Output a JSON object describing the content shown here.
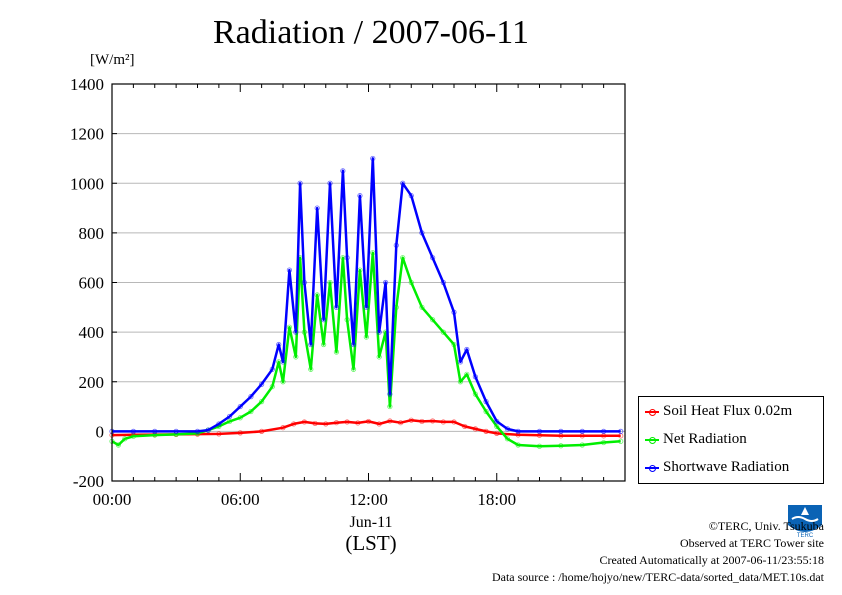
{
  "chart_data": {
    "type": "line",
    "title": "Radiation / 2007-06-11",
    "ylabel": "[W/m²]",
    "xlabel": "Jun-11",
    "xlabel_sub": "(LST)",
    "xlim": [
      0,
      24
    ],
    "ylim": [
      -200,
      1400
    ],
    "yticks": [
      -200,
      0,
      200,
      400,
      600,
      800,
      1000,
      1200,
      1400
    ],
    "xticks": [
      0,
      6,
      12,
      18
    ],
    "xtick_labels": [
      "00:00",
      "06:00",
      "12:00",
      "18:00"
    ],
    "grid": true,
    "legend_position": "bottom-right",
    "series": [
      {
        "name": "Soil Heat Flux 0.02m",
        "color": "#ff0000",
        "x": [
          0,
          1,
          2,
          3,
          4,
          5,
          6,
          7,
          8,
          8.5,
          9,
          9.5,
          10,
          10.5,
          11,
          11.5,
          12,
          12.5,
          13,
          13.5,
          14,
          14.5,
          15,
          15.5,
          16,
          16.5,
          17,
          17.5,
          18,
          19,
          20,
          21,
          22,
          23,
          23.8
        ],
        "y": [
          -15,
          -14,
          -13,
          -12,
          -11,
          -10,
          -6,
          0,
          15,
          30,
          38,
          32,
          30,
          35,
          38,
          34,
          40,
          30,
          42,
          35,
          45,
          40,
          42,
          38,
          38,
          20,
          10,
          0,
          -8,
          -14,
          -16,
          -18,
          -18,
          -18,
          -18
        ]
      },
      {
        "name": "Net Radiation",
        "color": "#00ee00",
        "x": [
          0,
          0.3,
          0.6,
          1,
          2,
          3,
          4,
          4.5,
          5,
          5.5,
          6,
          6.5,
          7,
          7.5,
          7.8,
          8,
          8.3,
          8.6,
          8.8,
          9,
          9.3,
          9.6,
          9.9,
          10.2,
          10.5,
          10.8,
          11,
          11.3,
          11.6,
          11.9,
          12.2,
          12.5,
          12.8,
          13,
          13.3,
          13.6,
          14,
          14.5,
          15,
          15.5,
          16,
          16.3,
          16.6,
          17,
          17.5,
          18,
          18.5,
          19,
          20,
          21,
          22,
          23,
          23.8
        ],
        "y": [
          -40,
          -55,
          -30,
          -20,
          -15,
          -12,
          -8,
          5,
          20,
          40,
          55,
          80,
          120,
          180,
          280,
          200,
          420,
          300,
          700,
          400,
          250,
          550,
          350,
          600,
          320,
          700,
          450,
          250,
          650,
          380,
          720,
          300,
          400,
          100,
          500,
          700,
          600,
          500,
          450,
          400,
          350,
          200,
          230,
          150,
          80,
          20,
          -30,
          -55,
          -60,
          -58,
          -55,
          -45,
          -40
        ]
      },
      {
        "name": "Shortwave Radiation",
        "color": "#0000ff",
        "x": [
          0,
          1,
          2,
          3,
          4,
          4.5,
          5,
          5.5,
          6,
          6.5,
          7,
          7.5,
          7.8,
          8,
          8.3,
          8.6,
          8.8,
          9,
          9.3,
          9.6,
          9.9,
          10.2,
          10.5,
          10.8,
          11,
          11.3,
          11.6,
          11.9,
          12.2,
          12.5,
          12.8,
          13,
          13.3,
          13.6,
          14,
          14.5,
          15,
          15.5,
          16,
          16.3,
          16.6,
          17,
          17.5,
          18,
          18.5,
          19,
          20,
          21,
          22,
          23,
          23.8
        ],
        "y": [
          0,
          0,
          0,
          0,
          0,
          5,
          30,
          60,
          100,
          140,
          190,
          250,
          350,
          280,
          650,
          400,
          1000,
          600,
          350,
          900,
          450,
          1000,
          500,
          1050,
          700,
          350,
          950,
          500,
          1100,
          400,
          600,
          150,
          750,
          1000,
          950,
          800,
          700,
          600,
          480,
          280,
          330,
          220,
          120,
          40,
          10,
          0,
          0,
          0,
          0,
          0,
          0
        ]
      }
    ]
  },
  "credits": {
    "copyright": "©TERC, Univ. Tsukuba",
    "site": "Observed at TERC Tower site",
    "created": "Created Automatically at 2007-06-11/23:55:18",
    "source": "Data source : /home/hojyo/new/TERC-data/sorted_data/MET.10s.dat"
  },
  "logo_text": "TERC"
}
